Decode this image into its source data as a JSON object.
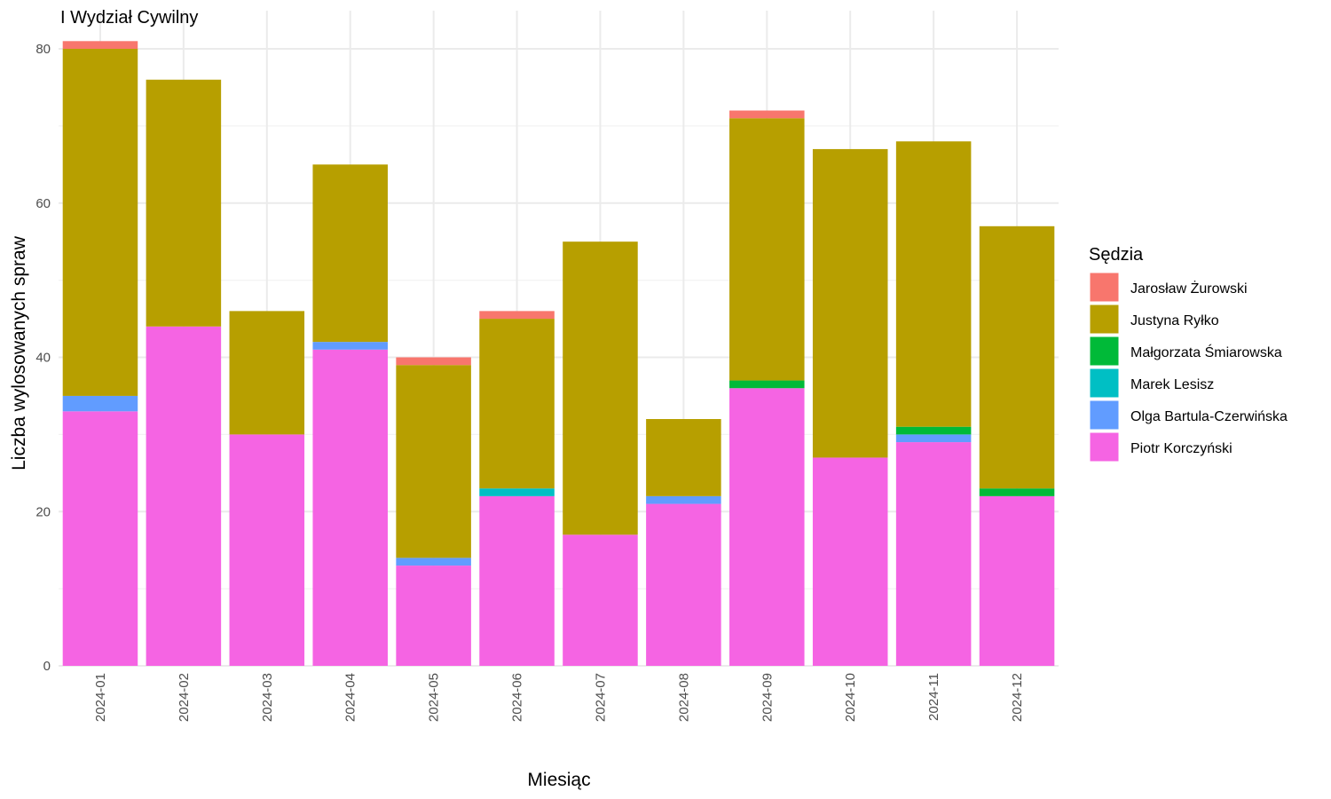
{
  "chart_data": {
    "type": "bar",
    "stacked": true,
    "title": "I Wydział Cywilny",
    "xlabel": "Miesiąc",
    "ylabel": "Liczba wylosowanych spraw",
    "ylim": [
      0,
      82
    ],
    "yticks": [
      0,
      20,
      40,
      60,
      80
    ],
    "grid": true,
    "legend_title": "Sędzia",
    "legend_position": "right",
    "categories": [
      "2024-01",
      "2024-02",
      "2024-03",
      "2024-04",
      "2024-05",
      "2024-06",
      "2024-07",
      "2024-08",
      "2024-09",
      "2024-10",
      "2024-11",
      "2024-12"
    ],
    "series": [
      {
        "name": "Piotr Korczyński",
        "color": "#F564E3",
        "values": [
          33,
          44,
          30,
          41,
          13,
          22,
          17,
          21,
          36,
          27,
          29,
          22
        ]
      },
      {
        "name": "Olga Bartula-Czerwińska",
        "color": "#619CFF",
        "values": [
          2,
          0,
          0,
          1,
          1,
          0,
          0,
          1,
          0,
          0,
          1,
          0
        ]
      },
      {
        "name": "Marek Lesisz",
        "color": "#00BFC4",
        "values": [
          0,
          0,
          0,
          0,
          0,
          1,
          0,
          0,
          0,
          0,
          0,
          0
        ]
      },
      {
        "name": "Małgorzata Śmiarowska",
        "color": "#00BA38",
        "values": [
          0,
          0,
          0,
          0,
          0,
          0,
          0,
          0,
          1,
          0,
          1,
          1
        ]
      },
      {
        "name": "Justyna Ryłko",
        "color": "#B79F00",
        "values": [
          45,
          32,
          16,
          23,
          25,
          22,
          38,
          10,
          34,
          40,
          37,
          34
        ]
      },
      {
        "name": "Jarosław Żurowski",
        "color": "#F8766D",
        "values": [
          1,
          0,
          0,
          0,
          1,
          1,
          0,
          0,
          1,
          0,
          0,
          0
        ]
      }
    ],
    "legend_order": [
      "Jarosław Żurowski",
      "Justyna Ryłko",
      "Małgorzata Śmiarowska",
      "Marek Lesisz",
      "Olga Bartula-Czerwińska",
      "Piotr Korczyński"
    ]
  }
}
